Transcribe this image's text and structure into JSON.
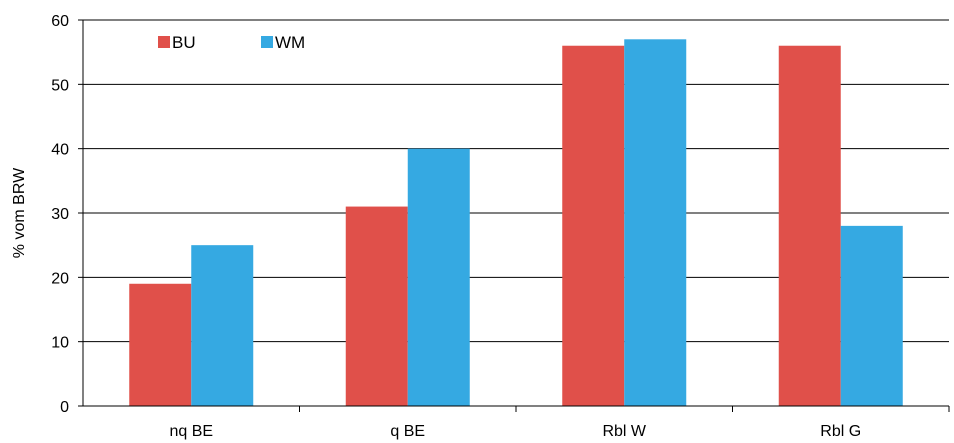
{
  "chart_data": {
    "type": "bar",
    "categories": [
      "nq BE",
      "q BE",
      "Rbl W",
      "Rbl G"
    ],
    "series": [
      {
        "name": "BU",
        "values": [
          19,
          31,
          56,
          56
        ],
        "color": "#e0504a"
      },
      {
        "name": "WM",
        "values": [
          25,
          40,
          57,
          28
        ],
        "color": "#35a9e2"
      }
    ],
    "xlabel": "",
    "ylabel": "% vom BRW",
    "ylim": [
      0,
      60
    ],
    "yticks": [
      0,
      10,
      20,
      30,
      40,
      50,
      60
    ],
    "grid": "horizontal",
    "legend_position": "top-left"
  }
}
